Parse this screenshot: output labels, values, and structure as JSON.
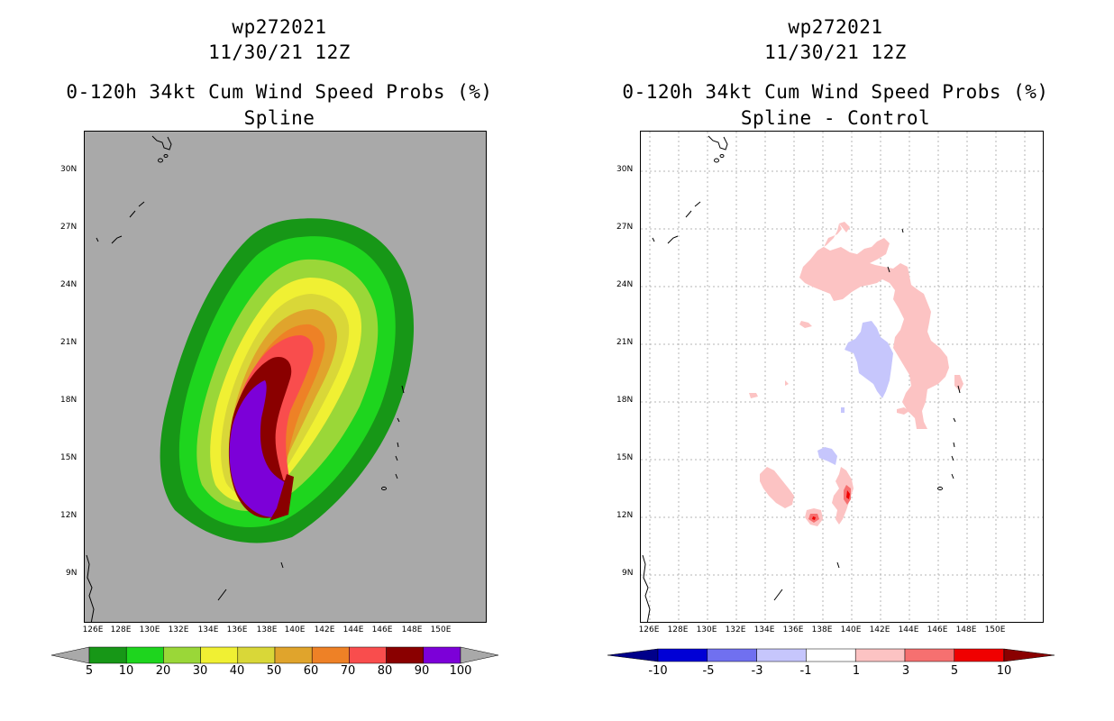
{
  "left_panel": {
    "title_line1": "wp272021",
    "title_line2": "11/30/21 12Z",
    "title_line3": "0-120h 34kt Cum Wind Speed Probs (%)",
    "title_line4": "Spline",
    "lat_labels": [
      "30N",
      "27N",
      "24N",
      "21N",
      "18N",
      "15N",
      "12N",
      "9N"
    ],
    "lon_labels": [
      "126E",
      "128E",
      "130E",
      "132E",
      "134E",
      "136E",
      "138E",
      "140E",
      "142E",
      "144E",
      "146E",
      "148E",
      "150E"
    ],
    "colorbar": {
      "labels": [
        "5",
        "10",
        "20",
        "30",
        "40",
        "50",
        "60",
        "70",
        "80",
        "90",
        "100"
      ],
      "colors": [
        "#179717",
        "#1ed51e",
        "#9ad738",
        "#f0f033",
        "#d9d738",
        "#e0a42c",
        "#ee8126",
        "#f94d4d",
        "#8a0000",
        "#7c00d8"
      ],
      "below_color": "#a9a9a9",
      "above_color": "#a9a9a9"
    }
  },
  "right_panel": {
    "title_line1": "wp272021",
    "title_line2": "11/30/21 12Z",
    "title_line3": "0-120h 34kt Cum Wind Speed Probs (%)",
    "title_line4": "Spline - Control",
    "lat_labels": [
      "30N",
      "27N",
      "24N",
      "21N",
      "18N",
      "15N",
      "12N",
      "9N"
    ],
    "lon_labels": [
      "126E",
      "128E",
      "130E",
      "132E",
      "134E",
      "136E",
      "138E",
      "140E",
      "142E",
      "144E",
      "146E",
      "148E",
      "150E"
    ],
    "colorbar": {
      "labels": [
        "-10",
        "-5",
        "-3",
        "-1",
        "1",
        "3",
        "5",
        "10"
      ],
      "colors": [
        "#0000d6",
        "#7070f0",
        "#c6c6fc",
        "#ffffff",
        "#fcc3c3",
        "#f67070",
        "#f00000"
      ],
      "below_color": "#00008a",
      "above_color": "#8a0000"
    }
  }
}
